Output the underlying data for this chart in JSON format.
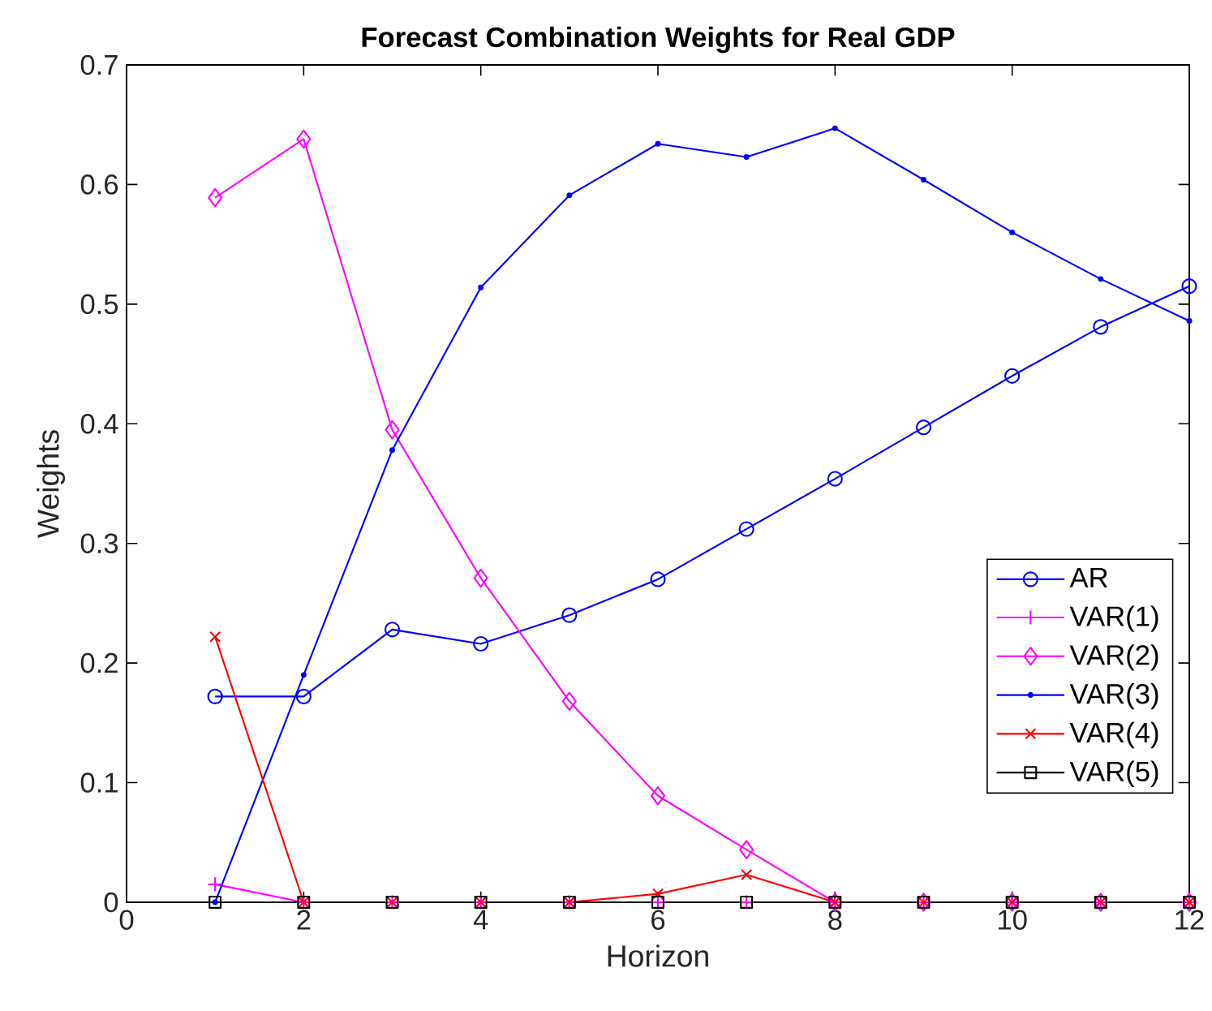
{
  "chart_data": {
    "type": "line",
    "title": "Forecast Combination Weights for Real GDP",
    "xlabel": "Horizon",
    "ylabel": "Weights",
    "x": [
      1,
      2,
      3,
      4,
      5,
      6,
      7,
      8,
      9,
      10,
      11,
      12
    ],
    "series": [
      {
        "name": "AR",
        "color": "#0000ff",
        "marker": "circle",
        "values": [
          0.172,
          0.172,
          0.228,
          0.216,
          0.24,
          0.27,
          0.312,
          0.354,
          0.397,
          0.44,
          0.481,
          0.515
        ]
      },
      {
        "name": "VAR(1)",
        "color": "#ff00ff",
        "marker": "plus",
        "values": [
          0.015,
          0,
          0,
          0,
          0,
          0,
          0,
          0,
          0,
          0,
          0,
          0
        ]
      },
      {
        "name": "VAR(2)",
        "color": "#ff00ff",
        "marker": "diamond",
        "values": [
          0.589,
          0.638,
          0.395,
          0.271,
          0.168,
          0.089,
          0.044,
          0,
          0,
          0,
          0,
          0
        ]
      },
      {
        "name": "VAR(3)",
        "color": "#0000ff",
        "marker": "point",
        "values": [
          0,
          0.19,
          0.378,
          0.514,
          0.591,
          0.634,
          0.623,
          0.647,
          0.604,
          0.56,
          0.521,
          0.486
        ]
      },
      {
        "name": "VAR(4)",
        "color": "#ff0000",
        "marker": "cross",
        "values": [
          0.222,
          0,
          0,
          0,
          0,
          0.007,
          0.023,
          0,
          0,
          0,
          0,
          0
        ]
      },
      {
        "name": "VAR(5)",
        "color": "#000000",
        "marker": "square",
        "values": [
          0,
          0,
          0,
          0,
          0,
          0,
          0,
          0,
          0,
          0,
          0,
          0
        ]
      }
    ],
    "xlim": [
      0,
      12
    ],
    "xticks": [
      0,
      2,
      4,
      6,
      8,
      10,
      12
    ],
    "ylim": [
      0,
      0.7
    ],
    "yticks": [
      0,
      0.1,
      0.2,
      0.3,
      0.4,
      0.5,
      0.6,
      0.7
    ],
    "grid": false,
    "legend": "right",
    "line_style": "solid"
  }
}
